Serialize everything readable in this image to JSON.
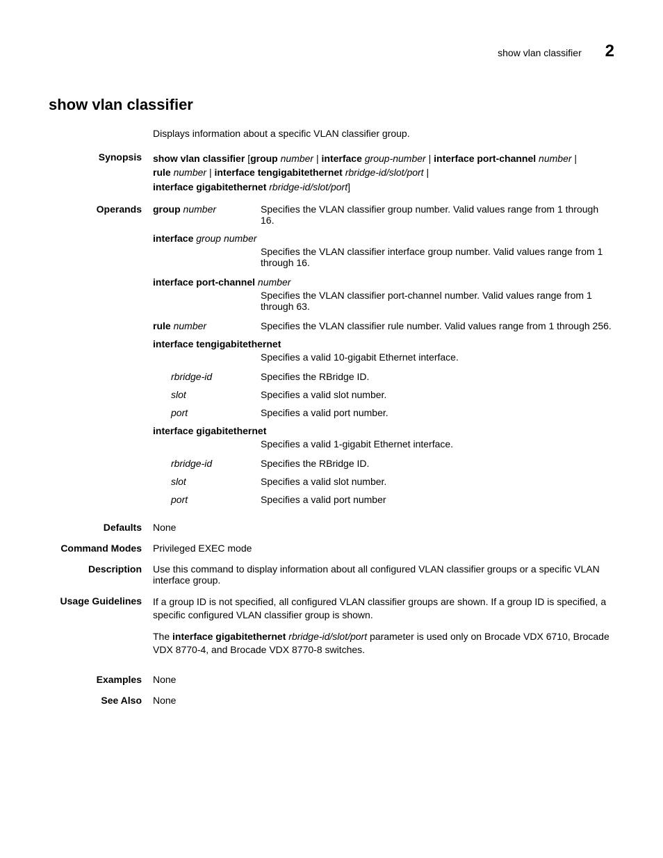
{
  "header": {
    "breadcrumb": "show vlan classifier",
    "chapter_number": "2"
  },
  "title": "show vlan classifier",
  "intro": "Displays information about a specific VLAN classifier group.",
  "synopsis": {
    "label": "Synopsis",
    "cmd": "show vlan classifier",
    "p_group": "group",
    "p_number": "number",
    "p_interface": "interface",
    "p_groupnumber": "group-number",
    "p_ifpc": "interface port-channel",
    "p_rule": "rule",
    "p_iftengig": "interface tengigabitethernet",
    "p_rsp": "rbridge-id/slot/port",
    "p_ifgig": "interface gigabitethernet"
  },
  "operands": {
    "label": "Operands",
    "rows": {
      "group": {
        "kw": "group",
        "arg": "number",
        "desc": "Specifies the VLAN classifier group number. Valid values range from 1 through 16."
      },
      "ifgroup": {
        "kw": "interface",
        "arg": "group number",
        "desc": "Specifies the VLAN classifier interface group number. Valid values range from 1 through 16."
      },
      "ifpc": {
        "kw": "interface port-channel",
        "arg": "number",
        "desc": "Specifies the VLAN classifier port-channel number. Valid values range from 1 through 63."
      },
      "rule": {
        "kw": "rule",
        "arg": "number",
        "desc": "Specifies the VLAN classifier rule number. Valid values range from 1 through 256."
      },
      "iftengig": {
        "kw": "interface tengigabitethernet",
        "desc": "Specifies a valid 10-gigabit Ethernet interface.",
        "sub": {
          "rbridge": {
            "term": "rbridge-id",
            "desc": "Specifies the RBridge ID."
          },
          "slot": {
            "term": "slot",
            "desc": "Specifies a valid slot number."
          },
          "port": {
            "term": "port",
            "desc": "Specifies a valid port number."
          }
        }
      },
      "ifgig": {
        "kw": "interface gigabitethernet",
        "desc": "Specifies a valid 1-gigabit Ethernet interface.",
        "sub": {
          "rbridge": {
            "term": "rbridge-id",
            "desc": "Specifies the RBridge ID."
          },
          "slot": {
            "term": "slot",
            "desc": "Specifies a valid slot number."
          },
          "port": {
            "term": "port",
            "desc": "Specifies a valid port number"
          }
        }
      }
    }
  },
  "defaults": {
    "label": "Defaults",
    "value": "None"
  },
  "modes": {
    "label": "Command Modes",
    "value": "Privileged EXEC mode"
  },
  "description": {
    "label": "Description",
    "value": "Use this command to display information about all configured VLAN classifier groups or a specific VLAN interface group."
  },
  "usage": {
    "label": "Usage Guidelines",
    "p1": "If a group ID is not specified, all configured VLAN classifier groups are shown. If a group ID is specified, a specific configured VLAN classifier group is shown.",
    "p2_pre": "The ",
    "p2_kw": "interface gigabitethernet",
    "p2_arg": "rbridge-id/slot/port",
    "p2_post": " parameter is used only on Brocade VDX 6710, Brocade VDX 8770-4, and Brocade VDX 8770-8 switches."
  },
  "examples": {
    "label": "Examples",
    "value": "None"
  },
  "seealso": {
    "label": "See Also",
    "value": "None"
  }
}
